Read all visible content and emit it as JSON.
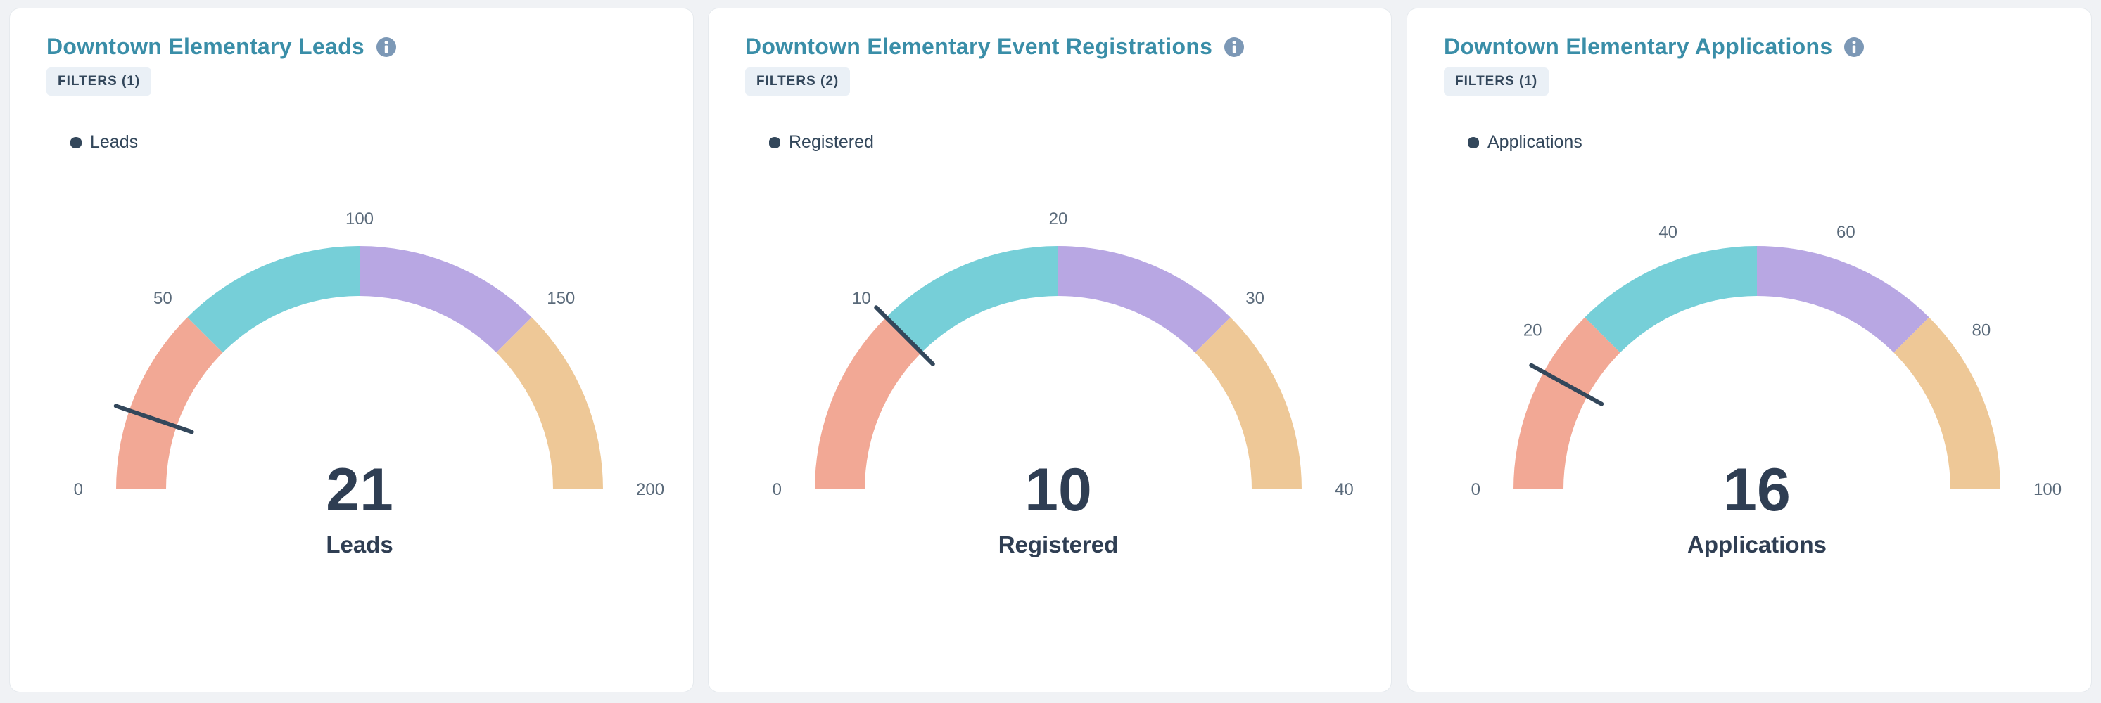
{
  "colors": {
    "segments": [
      "#f2a895",
      "#76cfd8",
      "#b8a7e3",
      "#eec897"
    ],
    "needle": "#33475b",
    "title": "#3a8ea8",
    "info_icon": "#7c98b6"
  },
  "icons": {
    "info": "info-icon",
    "legend_marker": "diamond-marker"
  },
  "cards": [
    {
      "title": "Downtown Elementary Leads",
      "filters": "FILTERS (1)",
      "legend": "Leads",
      "value": "21",
      "value_label": "Leads"
    },
    {
      "title": "Downtown Elementary Event Registrations",
      "filters": "FILTERS (2)",
      "legend": "Registered",
      "value": "10",
      "value_label": "Registered"
    },
    {
      "title": "Downtown Elementary Applications",
      "filters": "FILTERS (1)",
      "legend": "Applications",
      "value": "16",
      "value_label": "Applications"
    }
  ],
  "chart_data": [
    {
      "type": "gauge",
      "series": [
        {
          "name": "Leads",
          "values": [
            21
          ]
        }
      ],
      "min": 0,
      "max": 200,
      "ticks": [
        0,
        50,
        100,
        150,
        200
      ],
      "bands": [
        [
          0,
          50
        ],
        [
          50,
          100
        ],
        [
          100,
          150
        ],
        [
          150,
          200
        ]
      ],
      "value": 21
    },
    {
      "type": "gauge",
      "series": [
        {
          "name": "Registered",
          "values": [
            10
          ]
        }
      ],
      "min": 0,
      "max": 40,
      "ticks": [
        0,
        10,
        20,
        30,
        40
      ],
      "bands": [
        [
          0,
          10
        ],
        [
          10,
          20
        ],
        [
          20,
          30
        ],
        [
          30,
          40
        ]
      ],
      "value": 10
    },
    {
      "type": "gauge",
      "series": [
        {
          "name": "Applications",
          "values": [
            16
          ]
        }
      ],
      "min": 0,
      "max": 100,
      "ticks": [
        0,
        20,
        40,
        60,
        80,
        100
      ],
      "bands": [
        [
          0,
          25
        ],
        [
          25,
          50
        ],
        [
          50,
          75
        ],
        [
          75,
          100
        ]
      ],
      "value": 16
    }
  ]
}
